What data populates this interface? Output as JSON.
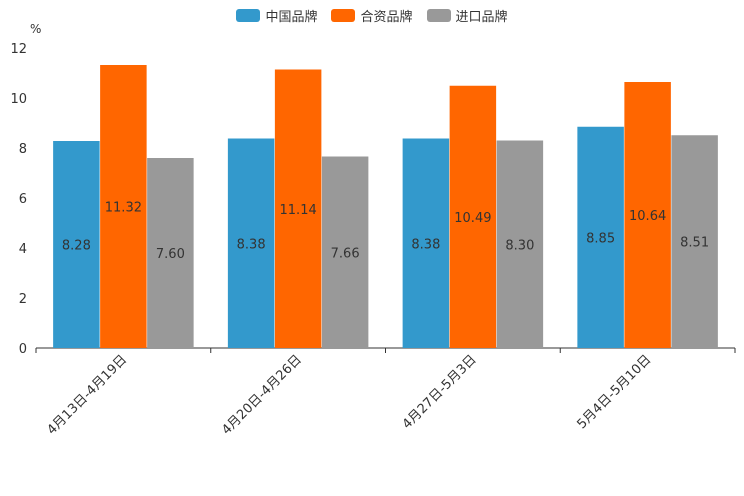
{
  "chart_data": {
    "type": "bar",
    "ylabel": "%",
    "ylim": [
      0,
      12
    ],
    "yticks": [
      "0",
      "2",
      "4",
      "6",
      "8",
      "10",
      "12"
    ],
    "categories": [
      "4月13日-4月19日",
      "4月20日-4月26日",
      "4月27日-5月3日",
      "5月4日-5月10日"
    ],
    "series": [
      {
        "name": "中国品牌",
        "color": "#3399cc",
        "values": [
          8.28,
          8.38,
          8.38,
          8.85
        ],
        "labels": [
          "8.28",
          "8.38",
          "8.38",
          "8.85"
        ]
      },
      {
        "name": "合资品牌",
        "color": "#ff6600",
        "values": [
          11.32,
          11.14,
          10.49,
          10.64
        ],
        "labels": [
          "11.32",
          "11.14",
          "10.49",
          "10.64"
        ]
      },
      {
        "name": "进口品牌",
        "color": "#999999",
        "values": [
          7.6,
          7.66,
          8.3,
          8.51
        ],
        "labels": [
          "7.60",
          "7.66",
          "8.30",
          "8.51"
        ]
      }
    ],
    "legend_position": "top-center",
    "grid": false
  }
}
